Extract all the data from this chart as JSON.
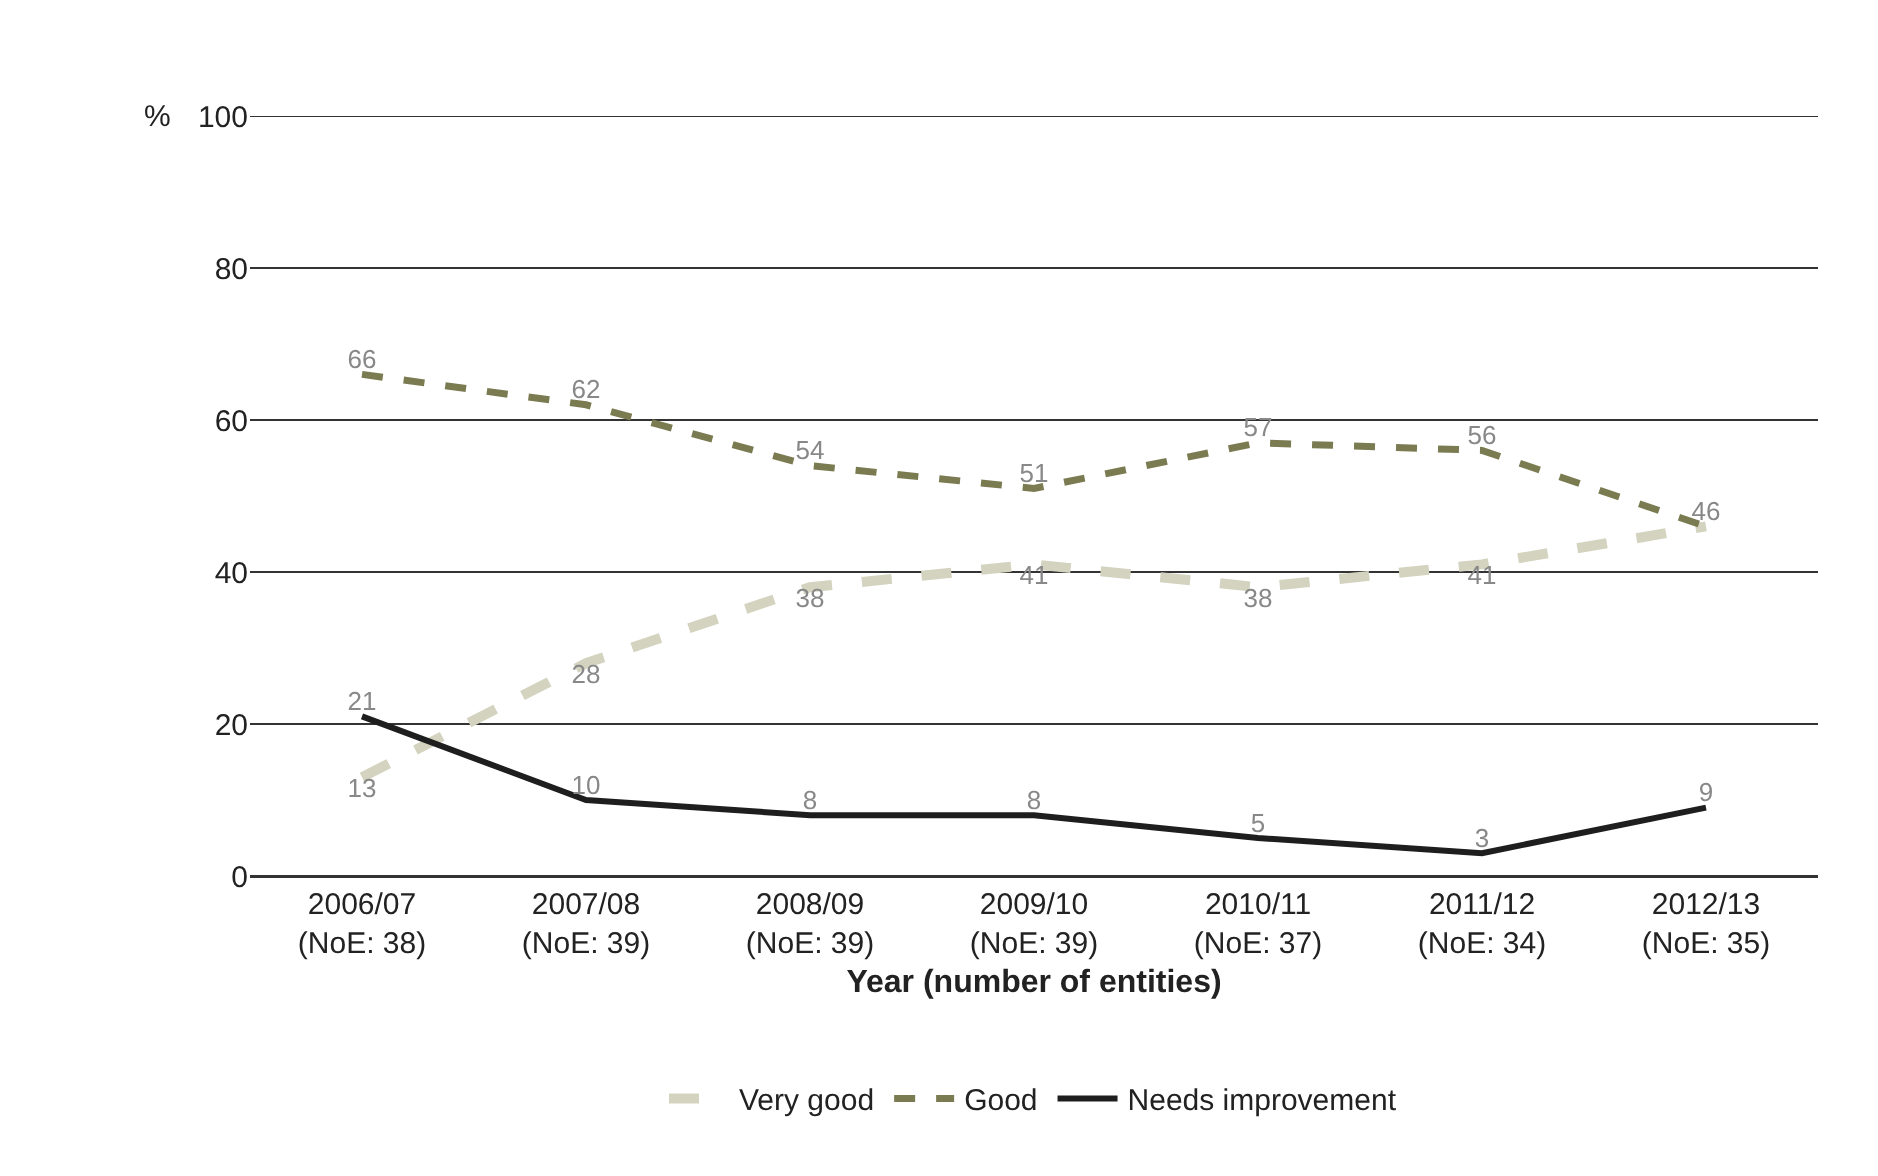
{
  "chart_data": {
    "type": "line",
    "ylabel": "%",
    "xlabel": "Year (number of entities)",
    "categories": [
      "2006/07\n(NoE: 38)",
      "2007/08\n(NoE: 39)",
      "2008/09\n(NoE: 39)",
      "2009/10\n(NoE: 39)",
      "2010/11\n(NoE: 37)",
      "2011/12\n(NoE: 34)",
      "2012/13\n(NoE: 35)"
    ],
    "series": [
      {
        "name": "Very good",
        "color": "#d3d3bf",
        "line_style": "dashed",
        "values": [
          13,
          28,
          38,
          41,
          38,
          41,
          46
        ],
        "value_labels": [
          "13",
          "28",
          "38",
          "41",
          "38",
          "41",
          null
        ]
      },
      {
        "name": "Good",
        "color": "#7b7b52",
        "line_style": "dashed",
        "values": [
          66,
          62,
          54,
          51,
          57,
          56,
          46
        ],
        "value_labels": [
          "66",
          "62",
          "54",
          "51",
          "57",
          "56",
          "46"
        ]
      },
      {
        "name": "Needs improvement",
        "color": "#1e1e1e",
        "line_style": "solid",
        "values": [
          21,
          10,
          8,
          8,
          5,
          3,
          9
        ],
        "value_labels": [
          "21",
          "10",
          "8",
          "8",
          "5",
          "3",
          "9"
        ]
      }
    ],
    "ylim": [
      0,
      100
    ],
    "yticks": [
      0,
      20,
      40,
      60,
      80,
      100
    ],
    "grid": "y",
    "legend": "bottom",
    "marker": "none"
  }
}
